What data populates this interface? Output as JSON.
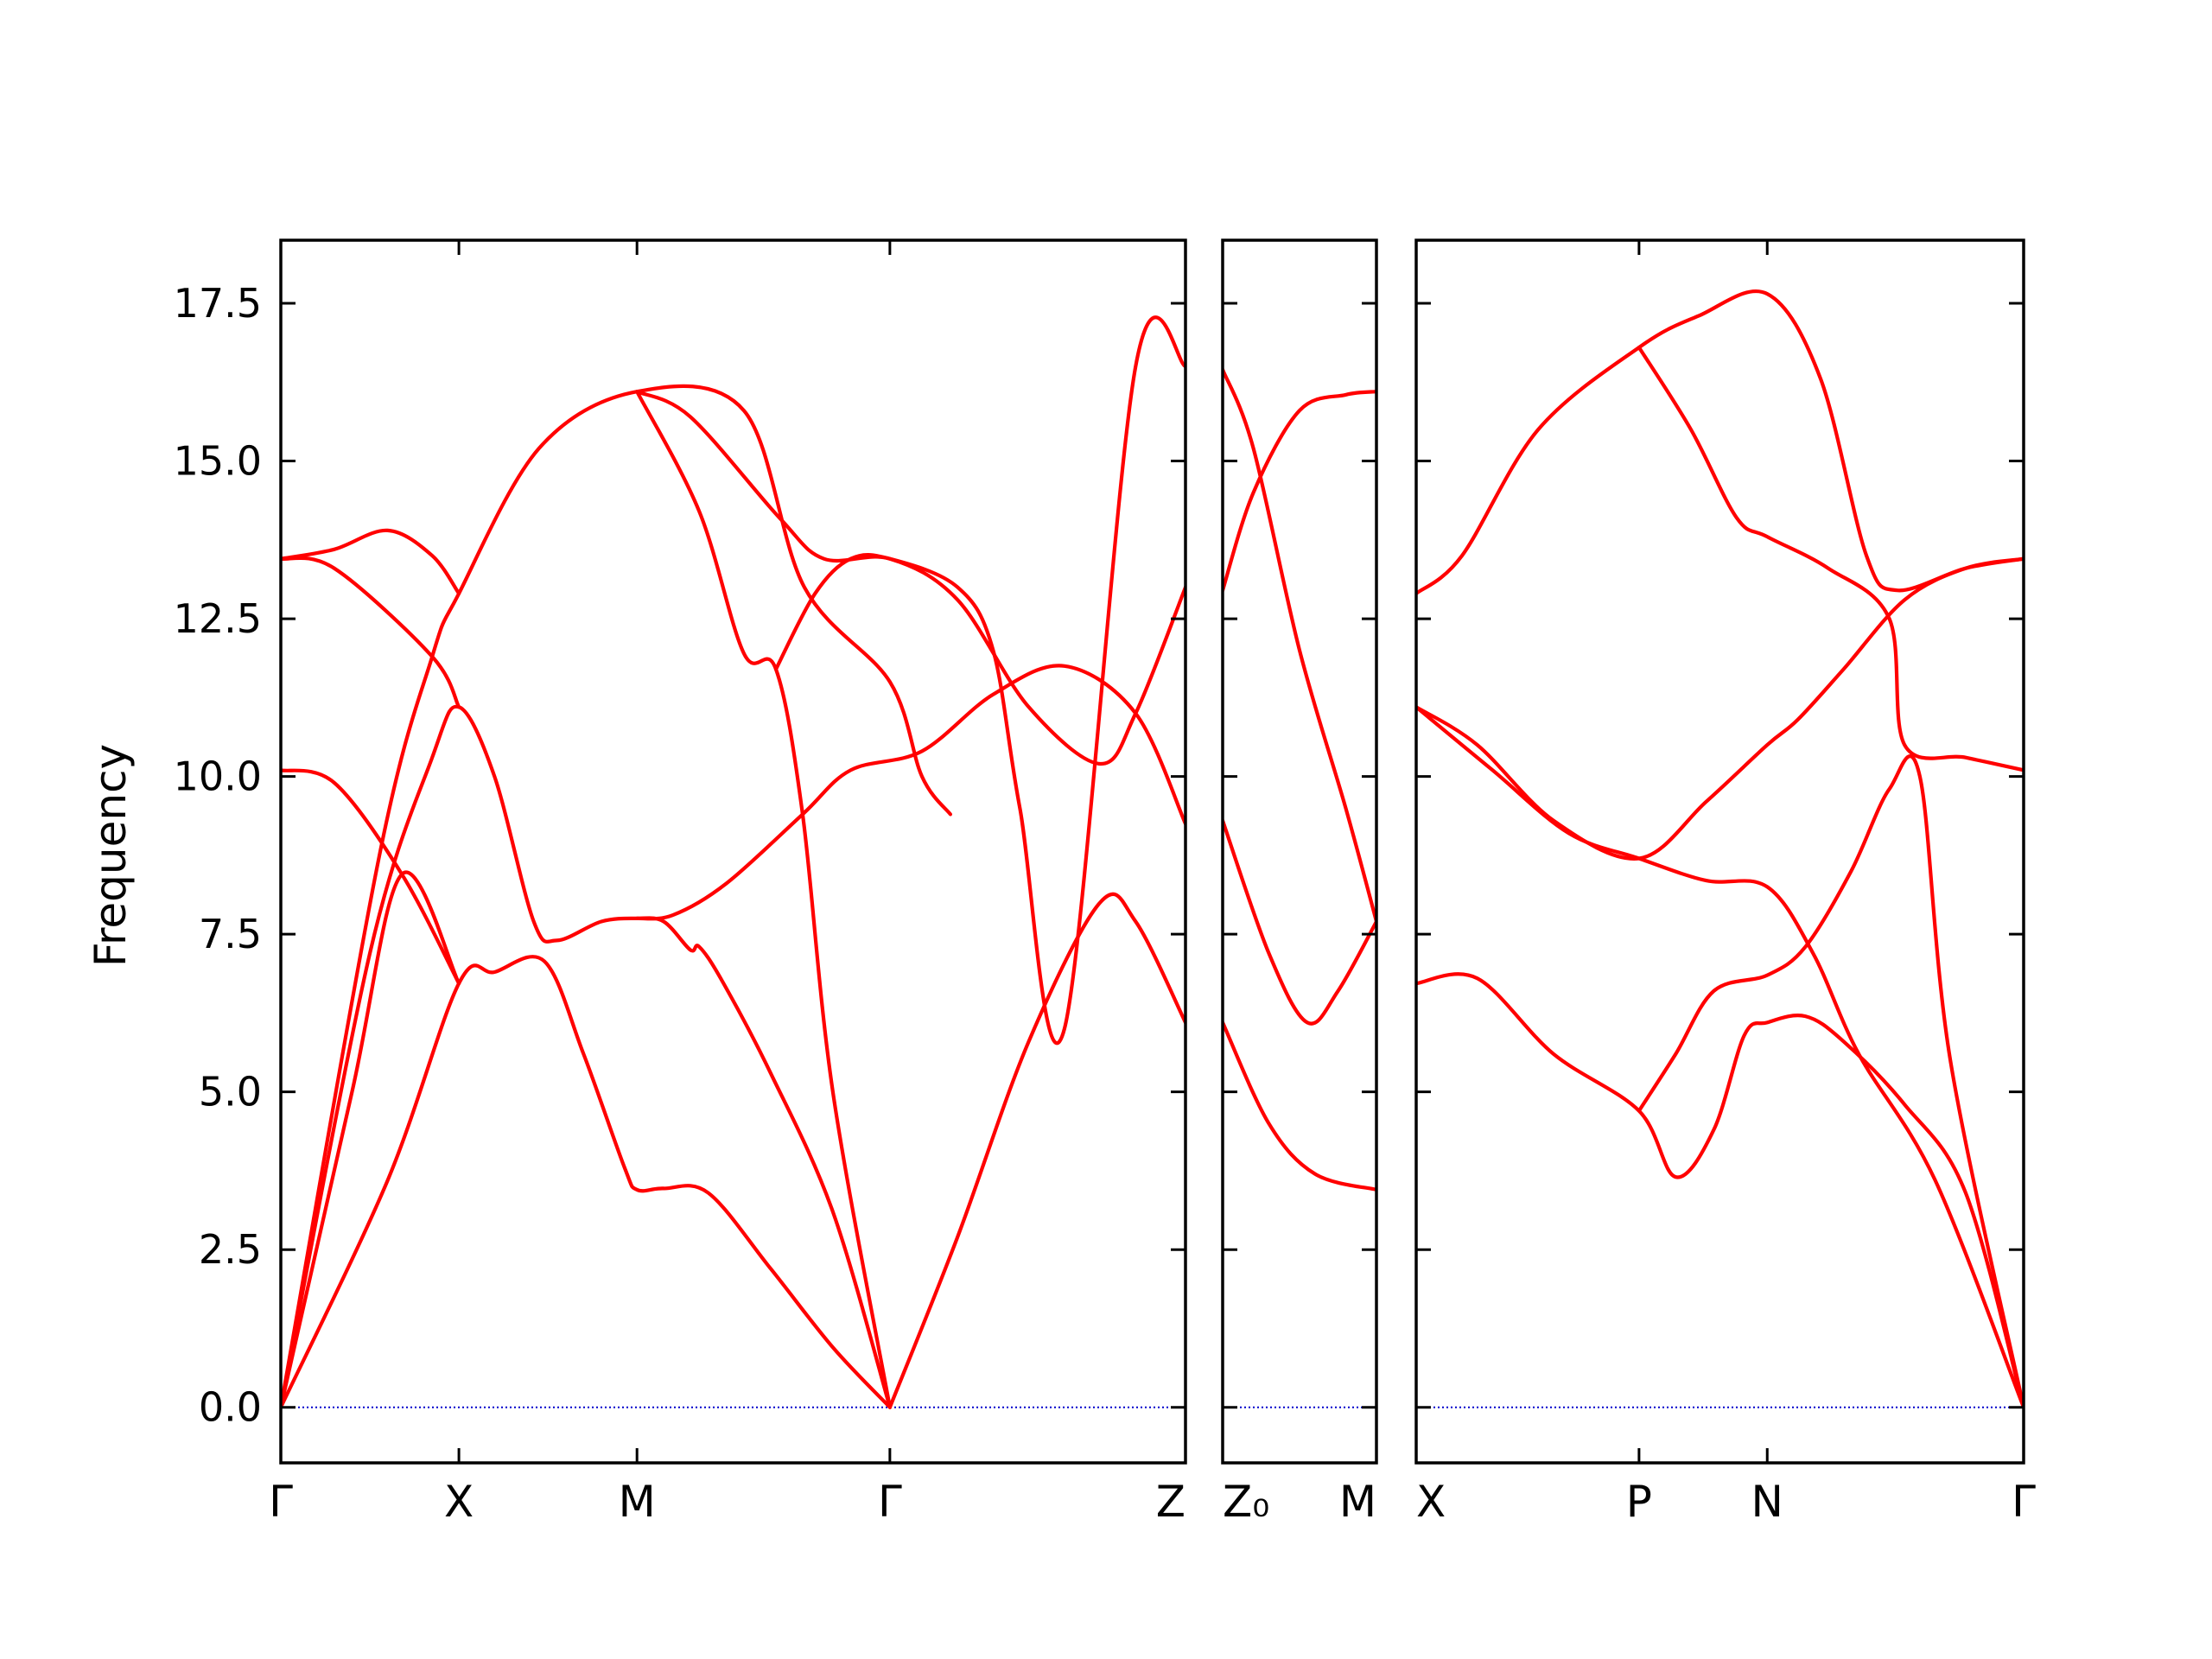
{
  "chart_data": {
    "type": "line",
    "title": "",
    "ylabel": "Frequency",
    "ylim": [
      -0.88,
      18.5
    ],
    "yticks": [
      0.0,
      2.5,
      5.0,
      7.5,
      10.0,
      12.5,
      15.0,
      17.5
    ],
    "ytick_labels": [
      "0.0",
      "2.5",
      "5.0",
      "7.5",
      "10.0",
      "12.5",
      "15.0",
      "17.5"
    ],
    "line_color": "#ff0000",
    "zero_line_color": "#0000cc",
    "panels": [
      {
        "xlim": [
          0,
          5.08
        ],
        "xticks": [
          0,
          1.0,
          2.0,
          3.42,
          5.08
        ],
        "xtick_labels": [
          "Γ",
          "X",
          "M",
          "Γ",
          "Z"
        ],
        "branches": [
          [
            [
              0,
              0
            ],
            [
              0.6,
              3.6
            ],
            [
              1.0,
              6.72
            ],
            [
              1.2,
              6.9
            ],
            [
              1.48,
              7.07
            ],
            [
              1.7,
              5.6
            ],
            [
              1.93,
              3.8
            ],
            [
              2.0,
              3.45
            ],
            [
              2.15,
              3.47
            ],
            [
              2.4,
              3.4
            ],
            [
              2.75,
              2.2
            ],
            [
              3.1,
              0.95
            ],
            [
              3.42,
              0
            ]
          ],
          [
            [
              0,
              0
            ],
            [
              0.4,
              5.0
            ],
            [
              0.68,
              8.45
            ],
            [
              1.0,
              6.72
            ]
          ],
          [
            [
              0,
              0
            ],
            [
              0.5,
              7.2
            ],
            [
              0.85,
              10.3
            ],
            [
              1.0,
              11.1
            ],
            [
              1.2,
              10.0
            ],
            [
              1.42,
              7.7
            ],
            [
              1.55,
              7.4
            ],
            [
              1.8,
              7.7
            ],
            [
              2.0,
              7.75
            ],
            [
              2.15,
              7.7
            ],
            [
              2.3,
              7.25
            ],
            [
              2.35,
              7.3
            ],
            [
              2.48,
              6.75
            ],
            [
              2.75,
              5.3
            ],
            [
              3.1,
              3.1
            ],
            [
              3.42,
              0
            ]
          ],
          [
            [
              0,
              0
            ],
            [
              0.55,
              8.7
            ],
            [
              0.85,
              11.9
            ],
            [
              1.0,
              12.9
            ],
            [
              1.45,
              15.2
            ],
            [
              2.0,
              16.1
            ],
            [
              2.6,
              15.8
            ],
            [
              2.94,
              13.0
            ],
            [
              3.42,
              11.5
            ],
            [
              3.6,
              10.0
            ],
            [
              3.76,
              9.4
            ]
          ],
          [
            [
              0,
              10.1
            ],
            [
              0.3,
              9.9
            ],
            [
              0.68,
              8.45
            ],
            [
              1.0,
              6.72
            ]
          ],
          [
            [
              0,
              13.45
            ],
            [
              0.3,
              13.3
            ],
            [
              0.85,
              11.9
            ],
            [
              1.0,
              11.1
            ]
          ],
          [
            [
              0,
              13.45
            ],
            [
              0.3,
              13.6
            ],
            [
              0.6,
              13.9
            ],
            [
              0.85,
              13.5
            ],
            [
              1.0,
              12.9
            ]
          ],
          [
            [
              2.0,
              16.1
            ],
            [
              2.35,
              14.2
            ],
            [
              2.6,
              11.95
            ],
            [
              2.78,
              11.7
            ],
            [
              2.93,
              9.4
            ],
            [
              3.1,
              5.0
            ],
            [
              3.42,
              0
            ]
          ],
          [
            [
              2.0,
              16.1
            ],
            [
              2.3,
              15.7
            ],
            [
              2.8,
              14.1
            ],
            [
              3.05,
              13.45
            ],
            [
              3.42,
              13.45
            ],
            [
              3.8,
              12.8
            ],
            [
              4.2,
              11.1
            ],
            [
              4.6,
              10.2
            ],
            [
              4.8,
              11.0
            ],
            [
              5.08,
              13.0
            ]
          ],
          [
            [
              2.0,
              7.75
            ],
            [
              2.2,
              7.8
            ],
            [
              2.5,
              8.3
            ],
            [
              2.93,
              9.4
            ],
            [
              3.2,
              10.1
            ],
            [
              3.6,
              10.4
            ],
            [
              4.0,
              11.3
            ],
            [
              4.4,
              11.75
            ],
            [
              4.8,
              11.0
            ],
            [
              5.08,
              9.25
            ]
          ],
          [
            [
              2.78,
              11.7
            ],
            [
              3.0,
              12.9
            ],
            [
              3.2,
              13.45
            ],
            [
              3.42,
              13.45
            ],
            [
              3.8,
              13.0
            ],
            [
              4.0,
              12.0
            ],
            [
              4.15,
              9.5
            ],
            [
              4.4,
              6.0
            ],
            [
              4.8,
              16.5
            ],
            [
              5.08,
              16.5
            ]
          ],
          [
            [
              3.42,
              0
            ],
            [
              3.8,
              2.7
            ],
            [
              4.2,
              5.8
            ],
            [
              4.6,
              8.0
            ],
            [
              4.8,
              7.7
            ],
            [
              5.08,
              6.1
            ]
          ]
        ]
      },
      {
        "xlim": [
          0,
          1
        ],
        "xticks": [
          0,
          1
        ],
        "xtick_labels": [
          "Z₀",
          "M"
        ],
        "branches": [
          [
            [
              0,
              16.45
            ],
            [
              0.2,
              15.2
            ],
            [
              0.5,
              12.0
            ],
            [
              0.8,
              9.5
            ],
            [
              1.0,
              7.7
            ]
          ],
          [
            [
              0,
              12.95
            ],
            [
              0.2,
              14.5
            ],
            [
              0.5,
              15.8
            ],
            [
              0.8,
              16.05
            ],
            [
              1.0,
              16.1
            ]
          ],
          [
            [
              0,
              9.3
            ],
            [
              0.3,
              7.2
            ],
            [
              0.55,
              6.1
            ],
            [
              0.75,
              6.6
            ],
            [
              1.0,
              7.7
            ]
          ],
          [
            [
              0,
              6.1
            ],
            [
              0.3,
              4.5
            ],
            [
              0.6,
              3.7
            ],
            [
              1.0,
              3.45
            ]
          ]
        ]
      },
      {
        "xlim": [
          0,
          3.98
        ],
        "xticks": [
          0,
          1.46,
          2.3,
          3.98
        ],
        "xtick_labels": [
          "X",
          "P",
          "N",
          "Γ"
        ],
        "branches": [
          [
            [
              0,
              12.9
            ],
            [
              0.3,
              13.5
            ],
            [
              0.8,
              15.5
            ],
            [
              1.46,
              16.8
            ],
            [
              1.85,
              17.3
            ],
            [
              2.3,
              17.65
            ],
            [
              2.65,
              16.3
            ],
            [
              2.95,
              13.5
            ],
            [
              3.15,
              12.95
            ],
            [
              3.6,
              13.3
            ],
            [
              3.98,
              13.45
            ]
          ],
          [
            [
              1.46,
              16.8
            ],
            [
              1.8,
              15.5
            ],
            [
              2.1,
              14.1
            ],
            [
              2.3,
              13.8
            ],
            [
              2.7,
              13.3
            ],
            [
              3.1,
              12.5
            ],
            [
              3.2,
              10.5
            ],
            [
              3.6,
              10.3
            ],
            [
              3.98,
              10.1
            ]
          ],
          [
            [
              0,
              11.1
            ],
            [
              0.4,
              10.5
            ],
            [
              0.9,
              9.3
            ],
            [
              1.46,
              8.7
            ],
            [
              1.9,
              9.6
            ],
            [
              2.3,
              10.5
            ],
            [
              2.5,
              10.9
            ],
            [
              2.8,
              11.7
            ],
            [
              3.2,
              12.8
            ],
            [
              3.6,
              13.3
            ],
            [
              3.98,
              13.45
            ]
          ],
          [
            [
              0,
              11.1
            ],
            [
              0.5,
              10.1
            ],
            [
              1.0,
              9.1
            ],
            [
              1.46,
              8.7
            ],
            [
              1.9,
              8.35
            ],
            [
              2.3,
              8.25
            ],
            [
              2.6,
              7.2
            ],
            [
              2.9,
              5.6
            ],
            [
              3.4,
              3.6
            ],
            [
              3.98,
              0
            ]
          ],
          [
            [
              0,
              6.72
            ],
            [
              0.4,
              6.8
            ],
            [
              0.9,
              5.6
            ],
            [
              1.46,
              4.7
            ],
            [
              1.7,
              3.65
            ],
            [
              1.95,
              4.4
            ],
            [
              2.15,
              5.9
            ],
            [
              2.3,
              6.1
            ],
            [
              2.55,
              6.2
            ],
            [
              2.8,
              5.8
            ],
            [
              3.2,
              4.8
            ],
            [
              3.6,
              3.4
            ],
            [
              3.98,
              0
            ]
          ],
          [
            [
              1.46,
              4.7
            ],
            [
              1.7,
              5.6
            ],
            [
              1.95,
              6.6
            ],
            [
              2.3,
              6.85
            ],
            [
              2.55,
              7.3
            ],
            [
              2.85,
              8.5
            ],
            [
              3.1,
              9.8
            ],
            [
              3.3,
              10.0
            ],
            [
              3.5,
              5.5
            ],
            [
              3.98,
              0
            ]
          ]
        ]
      }
    ]
  }
}
